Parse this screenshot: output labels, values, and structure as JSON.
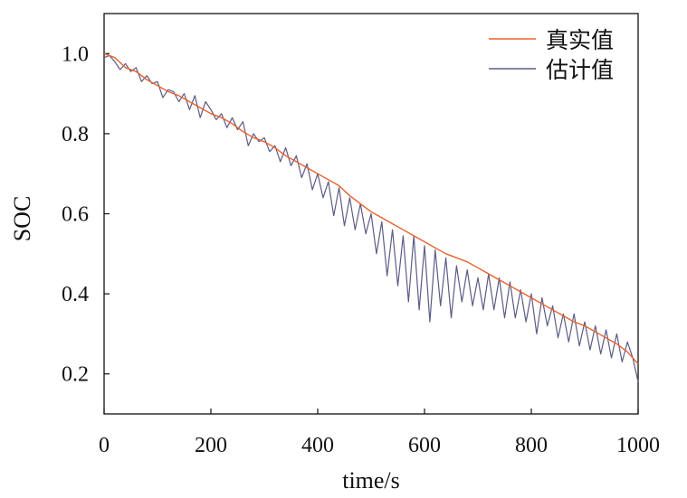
{
  "chart_data": {
    "type": "line",
    "title": "",
    "xlabel": "time/s",
    "ylabel": "SOC",
    "xlim": [
      0,
      1000
    ],
    "ylim": [
      0.1,
      1.1
    ],
    "xticks": [
      0,
      200,
      400,
      600,
      800,
      1000
    ],
    "xtick_labels": [
      "0",
      "200",
      "400",
      "600",
      "800",
      "1000"
    ],
    "yticks": [
      0.2,
      0.4,
      0.6,
      0.8,
      1.0
    ],
    "ytick_labels": [
      "0.2",
      "0.4",
      "0.6",
      "0.8",
      "1.0"
    ],
    "grid": false,
    "legend_position": "top-right",
    "series": [
      {
        "name": "真实值",
        "color": "#e8602c",
        "x": [
          0,
          20,
          40,
          60,
          80,
          100,
          120,
          140,
          160,
          180,
          200,
          220,
          240,
          260,
          280,
          300,
          320,
          340,
          360,
          380,
          400,
          420,
          440,
          460,
          480,
          500,
          520,
          540,
          560,
          580,
          600,
          620,
          640,
          660,
          680,
          700,
          720,
          740,
          760,
          780,
          800,
          820,
          840,
          860,
          880,
          900,
          920,
          940,
          960,
          980,
          1000
        ],
        "y": [
          1.0,
          0.99,
          0.965,
          0.955,
          0.935,
          0.92,
          0.905,
          0.895,
          0.88,
          0.865,
          0.85,
          0.84,
          0.825,
          0.805,
          0.79,
          0.78,
          0.765,
          0.745,
          0.73,
          0.715,
          0.7,
          0.685,
          0.67,
          0.645,
          0.625,
          0.605,
          0.59,
          0.575,
          0.56,
          0.545,
          0.53,
          0.515,
          0.5,
          0.49,
          0.48,
          0.465,
          0.45,
          0.435,
          0.42,
          0.405,
          0.39,
          0.375,
          0.36,
          0.345,
          0.33,
          0.32,
          0.305,
          0.29,
          0.275,
          0.255,
          0.225
        ]
      },
      {
        "name": "估计值",
        "color": "#5c5c86",
        "x": [
          0,
          10,
          20,
          30,
          40,
          50,
          60,
          70,
          80,
          90,
          100,
          110,
          120,
          130,
          140,
          150,
          160,
          170,
          180,
          190,
          200,
          210,
          220,
          230,
          240,
          250,
          260,
          270,
          280,
          290,
          300,
          310,
          320,
          330,
          340,
          350,
          360,
          370,
          380,
          390,
          400,
          410,
          420,
          430,
          440,
          450,
          460,
          470,
          480,
          490,
          500,
          510,
          520,
          530,
          540,
          550,
          560,
          570,
          580,
          590,
          600,
          610,
          620,
          630,
          640,
          650,
          660,
          670,
          680,
          690,
          700,
          710,
          720,
          730,
          740,
          750,
          760,
          770,
          780,
          790,
          800,
          810,
          820,
          830,
          840,
          850,
          860,
          870,
          880,
          890,
          900,
          910,
          920,
          930,
          940,
          950,
          960,
          970,
          980,
          990,
          1000
        ],
        "y": [
          0.99,
          0.995,
          0.98,
          0.96,
          0.975,
          0.955,
          0.965,
          0.93,
          0.945,
          0.925,
          0.93,
          0.89,
          0.91,
          0.905,
          0.88,
          0.9,
          0.86,
          0.895,
          0.84,
          0.88,
          0.86,
          0.835,
          0.85,
          0.815,
          0.84,
          0.81,
          0.83,
          0.77,
          0.8,
          0.78,
          0.79,
          0.755,
          0.77,
          0.73,
          0.765,
          0.72,
          0.745,
          0.69,
          0.725,
          0.66,
          0.7,
          0.64,
          0.68,
          0.595,
          0.665,
          0.57,
          0.64,
          0.56,
          0.625,
          0.55,
          0.6,
          0.5,
          0.58,
          0.445,
          0.56,
          0.42,
          0.545,
          0.38,
          0.545,
          0.36,
          0.52,
          0.33,
          0.51,
          0.37,
          0.49,
          0.34,
          0.47,
          0.38,
          0.46,
          0.37,
          0.44,
          0.36,
          0.45,
          0.36,
          0.44,
          0.34,
          0.43,
          0.34,
          0.41,
          0.33,
          0.4,
          0.3,
          0.39,
          0.32,
          0.37,
          0.29,
          0.35,
          0.28,
          0.35,
          0.27,
          0.33,
          0.26,
          0.32,
          0.25,
          0.31,
          0.24,
          0.3,
          0.23,
          0.28,
          0.24,
          0.18
        ]
      }
    ]
  }
}
